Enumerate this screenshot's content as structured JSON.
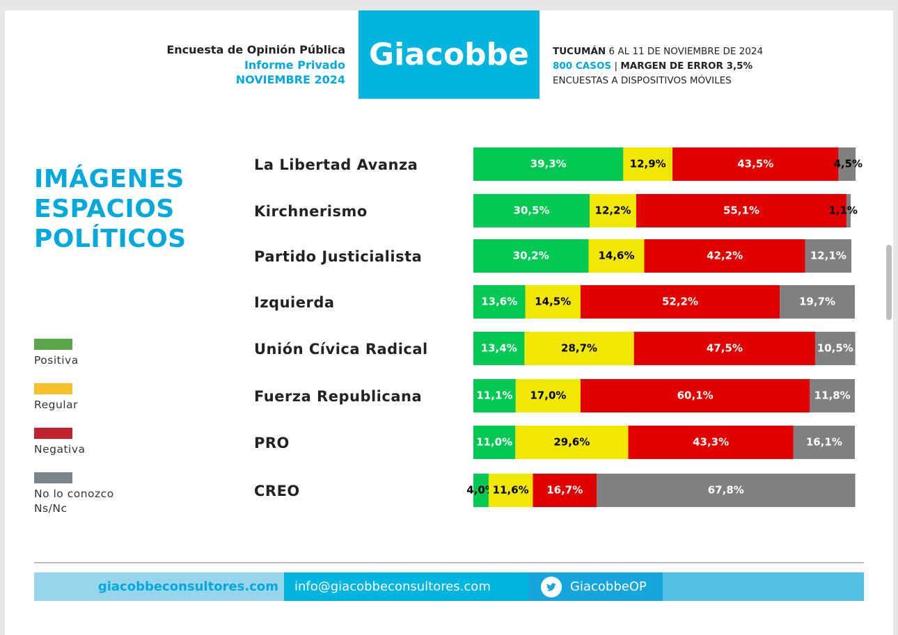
{
  "header": {
    "survey": "Encuesta de Opinión Pública",
    "report": "Informe Privado",
    "date": "NOVIEMBRE 2024",
    "brand": "Giacobbe",
    "place": "TUCUMÁN",
    "dates": "6 AL 11 DE NOVIEMBRE DE 2024",
    "cases": "800 CASOS",
    "separator": "|",
    "margin": "MARGEN DE ERROR 3,5%",
    "method": "ENCUESTAS A DISPOSITIVOS MÓVILES"
  },
  "chart_data": {
    "type": "stacked-bar-horizontal",
    "title": "IMÁGENES ESPACIOS POLÍTICOS",
    "categories": [
      "La Libertad Avanza",
      "Kirchnerismo",
      "Partido Justicialista",
      "Izquierda",
      "Unión Cívica Radical",
      "Fuerza Republicana",
      "PRO",
      "CREO"
    ],
    "xlim": [
      0,
      100
    ],
    "series": [
      {
        "name": "Positiva",
        "color": "#00c853",
        "legend_color": "#5aa64a",
        "values": [
          39.3,
          30.5,
          30.2,
          13.6,
          13.4,
          11.1,
          11.0,
          4.0
        ],
        "value_labels": [
          "39,3%",
          "30,5%",
          "30,2%",
          "13,6%",
          "13,4%",
          "11,1%",
          "11,0%",
          "4,0%"
        ]
      },
      {
        "name": "Regular",
        "color": "#f0e800",
        "legend_color": "#f5c02a",
        "values": [
          12.9,
          12.2,
          14.6,
          14.5,
          28.7,
          17.0,
          29.6,
          11.6
        ],
        "value_labels": [
          "12,9%",
          "12,2%",
          "14,6%",
          "14,5%",
          "28,7%",
          "17,0%",
          "29,6%",
          "11,6%"
        ]
      },
      {
        "name": "Negativa",
        "color": "#e00000",
        "legend_color": "#c0232c",
        "values": [
          43.5,
          55.1,
          42.2,
          52.2,
          47.5,
          60.1,
          43.3,
          16.7
        ],
        "value_labels": [
          "43,5%",
          "55,1%",
          "42,2%",
          "52,2%",
          "47,5%",
          "60,1%",
          "43,3%",
          "16,7%"
        ]
      },
      {
        "name": "No lo conozco Ns/Nc",
        "color": "#808080",
        "legend_color": "#7a868c",
        "values": [
          4.5,
          1.1,
          12.1,
          19.7,
          10.5,
          11.8,
          16.1,
          67.8
        ],
        "value_labels": [
          "4,5%",
          "1,1%",
          "12,1%",
          "19,7%",
          "10,5%",
          "11,8%",
          "16,1%",
          "67,8%"
        ]
      }
    ]
  },
  "footer": {
    "website": "giacobbeconsultores.com",
    "email": "info@giacobbeconsultores.com",
    "twitter": "GiacobbeOP"
  }
}
